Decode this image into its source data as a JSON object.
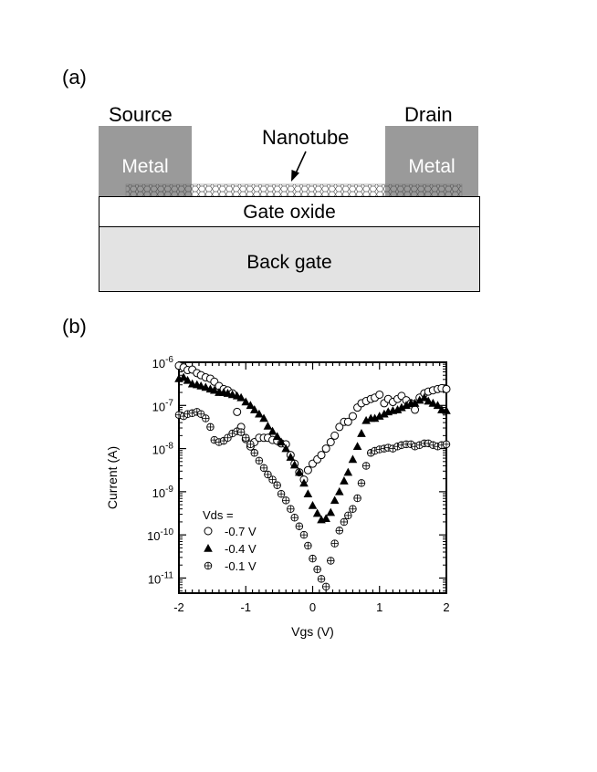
{
  "figure": {
    "panel_a": {
      "label": "(a)",
      "source_label": "Source",
      "drain_label": "Drain",
      "left_metal_label": "Metal",
      "right_metal_label": "Metal",
      "nanotube_label": "Nanotube",
      "gate_oxide_label": "Gate oxide",
      "back_gate_label": "Back gate"
    },
    "panel_b": {
      "label": "(b)"
    }
  },
  "chart_data": {
    "type": "scatter",
    "xlabel": "Vgs (V)",
    "ylabel": "Current (A)",
    "xlim": [
      -2,
      2
    ],
    "ylim_exponent": [
      -11.35,
      -6
    ],
    "y_scale": "log",
    "x_ticks": [
      "-2",
      "-1",
      "0",
      "1",
      "2"
    ],
    "y_ticks": [
      {
        "base": "10",
        "exp": "-6",
        "value": -6
      },
      {
        "base": "10",
        "exp": "-7",
        "value": -7
      },
      {
        "base": "10",
        "exp": "-8",
        "value": -8
      },
      {
        "base": "10",
        "exp": "-9",
        "value": -9
      },
      {
        "base": "10",
        "exp": "-10",
        "value": -10
      },
      {
        "base": "10",
        "exp": "-11",
        "value": -11
      }
    ],
    "legend_title": "Vds =",
    "legend_placement": "lower-left",
    "grid": false,
    "series": [
      {
        "name": "-0.7 V",
        "marker": "open-circle",
        "points": [
          [
            -2.0,
            -6.08
          ],
          [
            -1.93,
            -6.12
          ],
          [
            -1.87,
            -6.18
          ],
          [
            -1.8,
            -6.17
          ],
          [
            -1.73,
            -6.25
          ],
          [
            -1.67,
            -6.3
          ],
          [
            -1.6,
            -6.35
          ],
          [
            -1.53,
            -6.38
          ],
          [
            -1.47,
            -6.45
          ],
          [
            -1.4,
            -6.55
          ],
          [
            -1.33,
            -6.62
          ],
          [
            -1.27,
            -6.65
          ],
          [
            -1.2,
            -6.72
          ],
          [
            -1.13,
            -7.15
          ],
          [
            -1.07,
            -7.5
          ],
          [
            -1.0,
            -7.78
          ],
          [
            -0.93,
            -7.95
          ],
          [
            -0.87,
            -7.85
          ],
          [
            -0.8,
            -7.75
          ],
          [
            -0.73,
            -7.75
          ],
          [
            -0.67,
            -7.75
          ],
          [
            -0.6,
            -7.8
          ],
          [
            -0.53,
            -7.82
          ],
          [
            -0.47,
            -7.88
          ],
          [
            -0.4,
            -7.9
          ],
          [
            -0.33,
            -8.15
          ],
          [
            -0.27,
            -8.35
          ],
          [
            -0.2,
            -8.55
          ],
          [
            -0.13,
            -8.72
          ],
          [
            -0.07,
            -8.5
          ],
          [
            0.0,
            -8.35
          ],
          [
            0.07,
            -8.25
          ],
          [
            0.13,
            -8.15
          ],
          [
            0.2,
            -8.0
          ],
          [
            0.27,
            -7.85
          ],
          [
            0.33,
            -7.7
          ],
          [
            0.4,
            -7.5
          ],
          [
            0.47,
            -7.38
          ],
          [
            0.53,
            -7.38
          ],
          [
            0.6,
            -7.25
          ],
          [
            0.67,
            -7.05
          ],
          [
            0.73,
            -6.95
          ],
          [
            0.8,
            -6.9
          ],
          [
            0.87,
            -6.85
          ],
          [
            0.93,
            -6.82
          ],
          [
            1.0,
            -6.75
          ],
          [
            1.07,
            -6.95
          ],
          [
            1.13,
            -6.85
          ],
          [
            1.2,
            -6.92
          ],
          [
            1.27,
            -6.85
          ],
          [
            1.33,
            -6.78
          ],
          [
            1.4,
            -6.88
          ],
          [
            1.47,
            -6.95
          ],
          [
            1.53,
            -7.1
          ],
          [
            1.6,
            -6.82
          ],
          [
            1.67,
            -6.72
          ],
          [
            1.73,
            -6.68
          ],
          [
            1.8,
            -6.65
          ],
          [
            1.87,
            -6.62
          ],
          [
            1.93,
            -6.6
          ],
          [
            2.0,
            -6.62
          ]
        ]
      },
      {
        "name": "-0.4 V",
        "marker": "filled-triangle",
        "points": [
          [
            -2.0,
            -6.38
          ],
          [
            -1.93,
            -6.35
          ],
          [
            -1.87,
            -6.42
          ],
          [
            -1.8,
            -6.5
          ],
          [
            -1.73,
            -6.52
          ],
          [
            -1.67,
            -6.55
          ],
          [
            -1.6,
            -6.58
          ],
          [
            -1.53,
            -6.62
          ],
          [
            -1.47,
            -6.65
          ],
          [
            -1.4,
            -6.7
          ],
          [
            -1.33,
            -6.7
          ],
          [
            -1.27,
            -6.72
          ],
          [
            -1.2,
            -6.75
          ],
          [
            -1.13,
            -6.78
          ],
          [
            -1.07,
            -6.82
          ],
          [
            -1.0,
            -6.92
          ],
          [
            -0.93,
            -7.0
          ],
          [
            -0.87,
            -7.1
          ],
          [
            -0.8,
            -7.2
          ],
          [
            -0.73,
            -7.3
          ],
          [
            -0.67,
            -7.48
          ],
          [
            -0.6,
            -7.6
          ],
          [
            -0.53,
            -7.72
          ],
          [
            -0.47,
            -7.85
          ],
          [
            -0.4,
            -8.0
          ],
          [
            -0.33,
            -8.2
          ],
          [
            -0.27,
            -8.38
          ],
          [
            -0.2,
            -8.55
          ],
          [
            -0.13,
            -8.8
          ],
          [
            -0.07,
            -9.05
          ],
          [
            0.0,
            -9.32
          ],
          [
            0.07,
            -9.5
          ],
          [
            0.13,
            -9.65
          ],
          [
            0.2,
            -9.62
          ],
          [
            0.27,
            -9.48
          ],
          [
            0.33,
            -9.2
          ],
          [
            0.4,
            -9.0
          ],
          [
            0.47,
            -8.75
          ],
          [
            0.53,
            -8.55
          ],
          [
            0.6,
            -8.25
          ],
          [
            0.67,
            -7.95
          ],
          [
            0.73,
            -7.65
          ],
          [
            0.8,
            -7.35
          ],
          [
            0.87,
            -7.3
          ],
          [
            0.93,
            -7.3
          ],
          [
            1.0,
            -7.25
          ],
          [
            1.07,
            -7.2
          ],
          [
            1.13,
            -7.15
          ],
          [
            1.2,
            -7.12
          ],
          [
            1.27,
            -7.1
          ],
          [
            1.33,
            -7.05
          ],
          [
            1.4,
            -7.0
          ],
          [
            1.47,
            -6.95
          ],
          [
            1.53,
            -6.95
          ],
          [
            1.6,
            -6.88
          ],
          [
            1.67,
            -6.82
          ],
          [
            1.73,
            -6.9
          ],
          [
            1.8,
            -6.95
          ],
          [
            1.87,
            -7.0
          ],
          [
            1.93,
            -7.1
          ],
          [
            2.0,
            -7.12
          ]
        ]
      },
      {
        "name": "-0.1 V",
        "marker": "crossed-circle",
        "points": [
          [
            -2.0,
            -7.22
          ],
          [
            -1.93,
            -7.25
          ],
          [
            -1.87,
            -7.2
          ],
          [
            -1.8,
            -7.18
          ],
          [
            -1.73,
            -7.15
          ],
          [
            -1.67,
            -7.2
          ],
          [
            -1.6,
            -7.3
          ],
          [
            -1.53,
            -7.5
          ],
          [
            -1.47,
            -7.8
          ],
          [
            -1.4,
            -7.85
          ],
          [
            -1.33,
            -7.82
          ],
          [
            -1.27,
            -7.75
          ],
          [
            -1.2,
            -7.65
          ],
          [
            -1.13,
            -7.6
          ],
          [
            -1.07,
            -7.62
          ],
          [
            -1.0,
            -7.75
          ],
          [
            -0.93,
            -7.9
          ],
          [
            -0.87,
            -8.1
          ],
          [
            -0.8,
            -8.28
          ],
          [
            -0.73,
            -8.45
          ],
          [
            -0.67,
            -8.6
          ],
          [
            -0.6,
            -8.72
          ],
          [
            -0.53,
            -8.85
          ],
          [
            -0.47,
            -9.05
          ],
          [
            -0.4,
            -9.2
          ],
          [
            -0.33,
            -9.4
          ],
          [
            -0.27,
            -9.6
          ],
          [
            -0.2,
            -9.8
          ],
          [
            -0.13,
            -10.0
          ],
          [
            -0.07,
            -10.25
          ],
          [
            0.0,
            -10.55
          ],
          [
            0.07,
            -10.8
          ],
          [
            0.13,
            -11.02
          ],
          [
            0.2,
            -11.2
          ],
          [
            0.27,
            -10.6
          ],
          [
            0.33,
            -10.2
          ],
          [
            0.4,
            -9.9
          ],
          [
            0.47,
            -9.7
          ],
          [
            0.53,
            -9.55
          ],
          [
            0.6,
            -9.4
          ],
          [
            0.67,
            -9.15
          ],
          [
            0.73,
            -8.8
          ],
          [
            0.8,
            -8.4
          ],
          [
            0.87,
            -8.1
          ],
          [
            0.93,
            -8.05
          ],
          [
            1.0,
            -8.02
          ],
          [
            1.07,
            -8.0
          ],
          [
            1.13,
            -7.98
          ],
          [
            1.2,
            -8.0
          ],
          [
            1.27,
            -7.95
          ],
          [
            1.33,
            -7.92
          ],
          [
            1.4,
            -7.9
          ],
          [
            1.47,
            -7.9
          ],
          [
            1.53,
            -7.95
          ],
          [
            1.6,
            -7.92
          ],
          [
            1.67,
            -7.88
          ],
          [
            1.73,
            -7.88
          ],
          [
            1.8,
            -7.92
          ],
          [
            1.87,
            -7.95
          ],
          [
            1.93,
            -7.92
          ],
          [
            2.0,
            -7.9
          ]
        ]
      }
    ]
  }
}
